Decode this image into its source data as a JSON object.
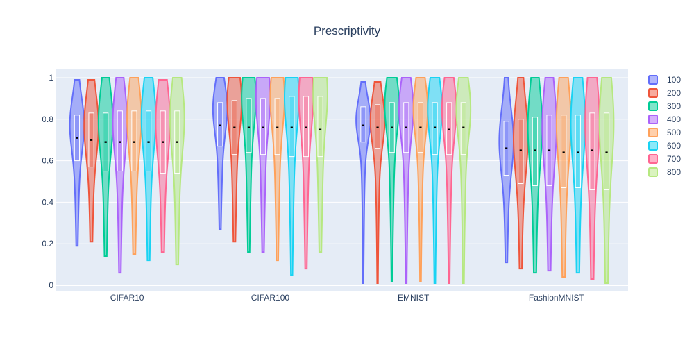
{
  "chart_data": {
    "type": "violin",
    "title": "Prescriptivity",
    "xlabel": "",
    "ylabel": "",
    "categories": [
      "CIFAR10",
      "CIFAR100",
      "EMNIST",
      "FashionMNIST"
    ],
    "ylim": [
      -0.03,
      1.04
    ],
    "yticks": [
      0,
      0.2,
      0.4,
      0.6,
      0.8,
      1
    ],
    "ytick_labels": [
      "0",
      "0.2",
      "0.4",
      "0.6",
      "0.8",
      "1"
    ],
    "legend_position": "top-right",
    "grid": true,
    "series": [
      {
        "name": "100",
        "color": "#636efa",
        "stats": [
          {
            "min": 0.19,
            "q1": 0.6,
            "median": 0.71,
            "q3": 0.82,
            "max": 0.99,
            "mode": 0.78
          },
          {
            "min": 0.27,
            "q1": 0.67,
            "median": 0.77,
            "q3": 0.88,
            "max": 1.0,
            "mode": 0.86
          },
          {
            "min": 0.01,
            "q1": 0.69,
            "median": 0.77,
            "q3": 0.86,
            "max": 0.98,
            "mode": 0.8
          },
          {
            "min": 0.11,
            "q1": 0.53,
            "median": 0.66,
            "q3": 0.79,
            "max": 1.0,
            "mode": 0.7
          }
        ]
      },
      {
        "name": "200",
        "color": "#ef553b",
        "stats": [
          {
            "min": 0.21,
            "q1": 0.57,
            "median": 0.7,
            "q3": 0.83,
            "max": 0.99,
            "mode": 0.78
          },
          {
            "min": 0.21,
            "q1": 0.63,
            "median": 0.76,
            "q3": 0.89,
            "max": 1.0,
            "mode": 0.9
          },
          {
            "min": 0.01,
            "q1": 0.66,
            "median": 0.76,
            "q3": 0.87,
            "max": 0.98,
            "mode": 0.8
          },
          {
            "min": 0.08,
            "q1": 0.49,
            "median": 0.65,
            "q3": 0.8,
            "max": 1.0,
            "mode": 0.72
          }
        ]
      },
      {
        "name": "300",
        "color": "#00cc96",
        "stats": [
          {
            "min": 0.14,
            "q1": 0.55,
            "median": 0.69,
            "q3": 0.83,
            "max": 1.0,
            "mode": 0.8
          },
          {
            "min": 0.16,
            "q1": 0.64,
            "median": 0.76,
            "q3": 0.9,
            "max": 1.0,
            "mode": 0.92
          },
          {
            "min": 0.02,
            "q1": 0.64,
            "median": 0.76,
            "q3": 0.88,
            "max": 1.0,
            "mode": 0.88
          },
          {
            "min": 0.06,
            "q1": 0.48,
            "median": 0.65,
            "q3": 0.81,
            "max": 1.0,
            "mode": 0.78
          }
        ]
      },
      {
        "name": "400",
        "color": "#ab63fa",
        "stats": [
          {
            "min": 0.06,
            "q1": 0.55,
            "median": 0.69,
            "q3": 0.84,
            "max": 1.0,
            "mode": 0.8
          },
          {
            "min": 0.16,
            "q1": 0.63,
            "median": 0.76,
            "q3": 0.9,
            "max": 1.0,
            "mode": 0.92
          },
          {
            "min": 0.01,
            "q1": 0.64,
            "median": 0.76,
            "q3": 0.88,
            "max": 1.0,
            "mode": 0.86
          },
          {
            "min": 0.07,
            "q1": 0.48,
            "median": 0.65,
            "q3": 0.82,
            "max": 1.0,
            "mode": 0.78
          }
        ]
      },
      {
        "name": "500",
        "color": "#ffa15a",
        "stats": [
          {
            "min": 0.15,
            "q1": 0.55,
            "median": 0.69,
            "q3": 0.84,
            "max": 1.0,
            "mode": 0.82
          },
          {
            "min": 0.12,
            "q1": 0.63,
            "median": 0.76,
            "q3": 0.9,
            "max": 1.0,
            "mode": 0.92
          },
          {
            "min": 0.02,
            "q1": 0.64,
            "median": 0.76,
            "q3": 0.88,
            "max": 1.0,
            "mode": 0.86
          },
          {
            "min": 0.04,
            "q1": 0.47,
            "median": 0.64,
            "q3": 0.82,
            "max": 1.0,
            "mode": 0.8
          }
        ]
      },
      {
        "name": "600",
        "color": "#19d3f3",
        "stats": [
          {
            "min": 0.12,
            "q1": 0.55,
            "median": 0.69,
            "q3": 0.84,
            "max": 1.0,
            "mode": 0.82
          },
          {
            "min": 0.05,
            "q1": 0.62,
            "median": 0.76,
            "q3": 0.91,
            "max": 1.0,
            "mode": 0.92
          },
          {
            "min": 0.01,
            "q1": 0.63,
            "median": 0.76,
            "q3": 0.88,
            "max": 1.0,
            "mode": 0.86
          },
          {
            "min": 0.06,
            "q1": 0.47,
            "median": 0.64,
            "q3": 0.82,
            "max": 1.0,
            "mode": 0.8
          }
        ]
      },
      {
        "name": "700",
        "color": "#ff6692",
        "stats": [
          {
            "min": 0.16,
            "q1": 0.54,
            "median": 0.69,
            "q3": 0.84,
            "max": 0.99,
            "mode": 0.8
          },
          {
            "min": 0.08,
            "q1": 0.62,
            "median": 0.76,
            "q3": 0.91,
            "max": 1.0,
            "mode": 0.92
          },
          {
            "min": 0.01,
            "q1": 0.63,
            "median": 0.75,
            "q3": 0.88,
            "max": 1.0,
            "mode": 0.86
          },
          {
            "min": 0.03,
            "q1": 0.46,
            "median": 0.65,
            "q3": 0.83,
            "max": 1.0,
            "mode": 0.8
          }
        ]
      },
      {
        "name": "800",
        "color": "#b6e880",
        "stats": [
          {
            "min": 0.1,
            "q1": 0.54,
            "median": 0.69,
            "q3": 0.84,
            "max": 1.0,
            "mode": 0.82
          },
          {
            "min": 0.16,
            "q1": 0.62,
            "median": 0.75,
            "q3": 0.91,
            "max": 1.0,
            "mode": 0.94
          },
          {
            "min": 0.01,
            "q1": 0.63,
            "median": 0.76,
            "q3": 0.88,
            "max": 1.0,
            "mode": 0.86
          },
          {
            "min": 0.01,
            "q1": 0.46,
            "median": 0.64,
            "q3": 0.83,
            "max": 1.0,
            "mode": 0.8
          }
        ]
      }
    ]
  }
}
